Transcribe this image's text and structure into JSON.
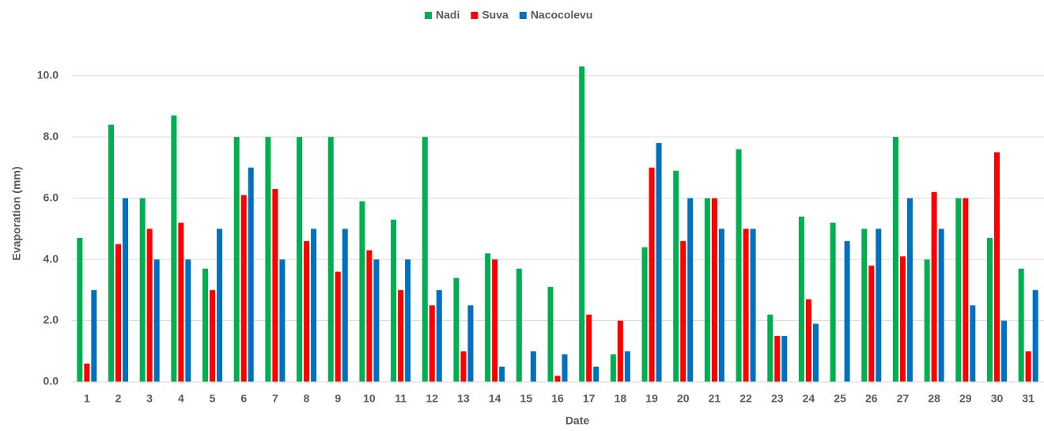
{
  "chart_data": {
    "type": "bar",
    "x_label": "Date",
    "y_label": "Evaporation (mm)",
    "categories": [
      "1",
      "2",
      "3",
      "4",
      "5",
      "6",
      "7",
      "8",
      "9",
      "10",
      "11",
      "12",
      "13",
      "14",
      "15",
      "16",
      "17",
      "18",
      "19",
      "20",
      "21",
      "22",
      "23",
      "24",
      "25",
      "26",
      "27",
      "28",
      "29",
      "30",
      "31"
    ],
    "series": [
      {
        "name": "Nadi",
        "color": "#00b050",
        "values": [
          4.7,
          8.4,
          6.0,
          8.7,
          3.7,
          8.0,
          8.0,
          8.0,
          8.0,
          5.9,
          5.3,
          8.0,
          3.4,
          4.2,
          3.7,
          3.1,
          10.3,
          0.9,
          4.4,
          6.9,
          6.0,
          7.6,
          2.2,
          5.4,
          5.2,
          5.0,
          8.0,
          4.0,
          6.0,
          4.7,
          3.7
        ]
      },
      {
        "name": "Suva",
        "color": "#ff0000",
        "values": [
          0.6,
          4.5,
          5.0,
          5.2,
          3.0,
          6.1,
          6.3,
          4.6,
          3.6,
          4.3,
          3.0,
          2.5,
          1.0,
          4.0,
          null,
          0.2,
          2.2,
          2.0,
          7.0,
          4.6,
          6.0,
          5.0,
          1.5,
          2.7,
          null,
          3.8,
          4.1,
          6.2,
          6.0,
          7.5,
          1.0
        ]
      },
      {
        "name": "Nacocolevu",
        "color": "#0070c0",
        "values": [
          3.0,
          6.0,
          4.0,
          4.0,
          5.0,
          7.0,
          4.0,
          5.0,
          5.0,
          4.0,
          4.0,
          3.0,
          2.5,
          0.5,
          1.0,
          0.9,
          0.5,
          1.0,
          7.8,
          6.0,
          5.0,
          5.0,
          1.5,
          1.9,
          4.6,
          5.0,
          6.0,
          5.0,
          2.5,
          2.0,
          3.0
        ]
      }
    ],
    "ylim": [
      0,
      11
    ],
    "yticks": [
      {
        "value": 0,
        "label": "0.0"
      },
      {
        "value": 2,
        "label": "2.0"
      },
      {
        "value": 4,
        "label": "4.0"
      },
      {
        "value": 6,
        "label": "6.0"
      },
      {
        "value": 8,
        "label": "8.0"
      },
      {
        "value": 10,
        "label": "10.0"
      }
    ],
    "grid": true,
    "legend": "top"
  }
}
